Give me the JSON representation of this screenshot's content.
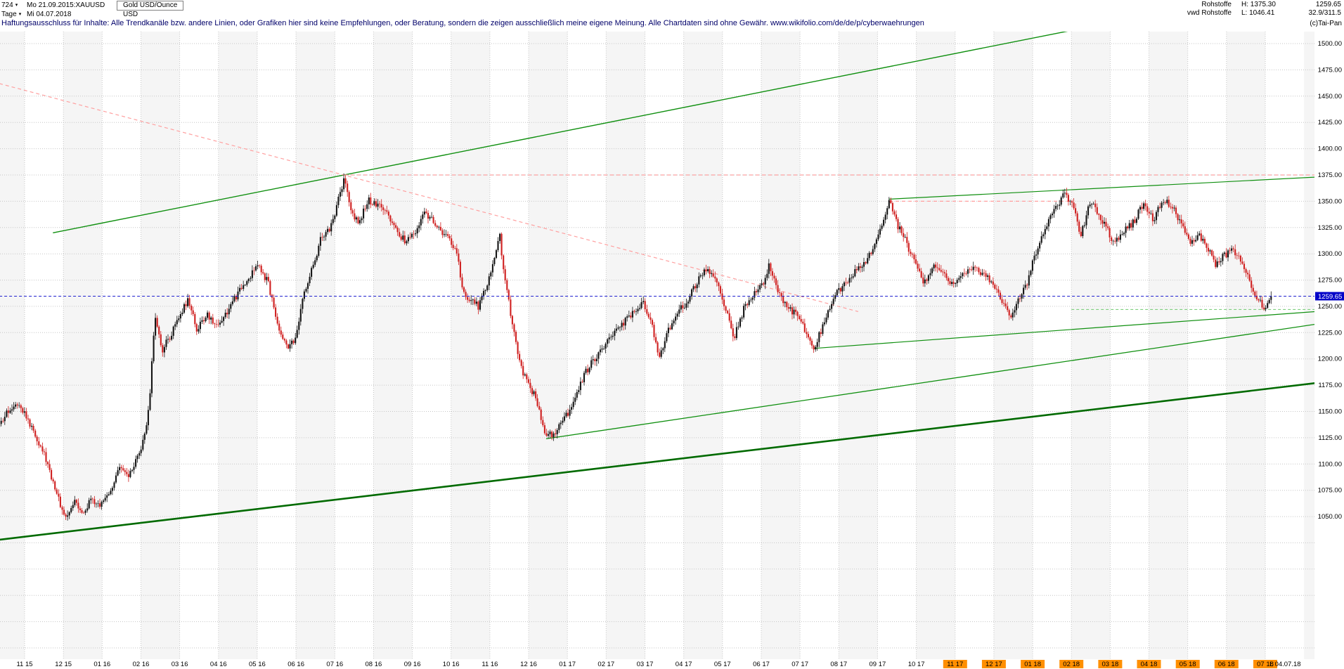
{
  "header": {
    "periods": "724",
    "range_start": "Mo 21.09.2015:XAUUSD",
    "instrument": "Gold USD/Ounce",
    "timeframe": "Tage",
    "range_end": "Mi 04.07.2018",
    "currency": "USD",
    "right": {
      "source1": "Rohstoffe",
      "high": "H: 1375.30",
      "price": "1259.65",
      "source2": "vwd Rohstoffe",
      "low": "L: 1046.41",
      "ratio": "32.9/311.5",
      "copyright": "(c)Tai-Pan"
    },
    "disclaimer": "Haftungsausschluss für Inhalte: Alle Trendkanäle bzw. andere Linien, oder Grafiken hier sind keine Empfehlungen, oder Beratung, sondern die zeigen ausschließlich meine eigene Meinung. Alle Chartdaten sind ohne Gewähr.  www.wikifolio.com/de/de/p/cyberwaehrungen"
  },
  "icons": {
    "dropdown": "▾"
  },
  "chart_data": {
    "type": "candlestick",
    "title": "Gold USD/Ounce",
    "symbol": "XAUUSD",
    "timeframe": "Tage",
    "period_shown": "21.09.2015 - 04.07.2018",
    "current_price": 1259.65,
    "high": 1375.3,
    "low": 1046.41,
    "y_axis": {
      "min": 1050,
      "max": 1500,
      "step": 25,
      "grid_min": 925
    },
    "x_axis": {
      "months": [
        {
          "label": "11 15",
          "hl": false
        },
        {
          "label": "12 15",
          "hl": false
        },
        {
          "label": "01 16",
          "hl": false
        },
        {
          "label": "02 16",
          "hl": false
        },
        {
          "label": "03 16",
          "hl": false
        },
        {
          "label": "04 16",
          "hl": false
        },
        {
          "label": "05 16",
          "hl": false
        },
        {
          "label": "06 16",
          "hl": false
        },
        {
          "label": "07 16",
          "hl": false
        },
        {
          "label": "08 16",
          "hl": false
        },
        {
          "label": "09 16",
          "hl": false
        },
        {
          "label": "10 16",
          "hl": false
        },
        {
          "label": "11 16",
          "hl": false
        },
        {
          "label": "12 16",
          "hl": false
        },
        {
          "label": "01 17",
          "hl": false
        },
        {
          "label": "02 17",
          "hl": false
        },
        {
          "label": "03 17",
          "hl": false
        },
        {
          "label": "04 17",
          "hl": false
        },
        {
          "label": "05 17",
          "hl": false
        },
        {
          "label": "06 17",
          "hl": false
        },
        {
          "label": "07 17",
          "hl": false
        },
        {
          "label": "08 17",
          "hl": false
        },
        {
          "label": "09 17",
          "hl": false
        },
        {
          "label": "10 17",
          "hl": false
        },
        {
          "label": "11 17",
          "hl": true
        },
        {
          "label": "12 17",
          "hl": true
        },
        {
          "label": "01 18",
          "hl": true
        },
        {
          "label": "02 18",
          "hl": true
        },
        {
          "label": "03 18",
          "hl": true
        },
        {
          "label": "04 18",
          "hl": true
        },
        {
          "label": "05 18",
          "hl": true
        },
        {
          "label": "06 18",
          "hl": true
        },
        {
          "label": "07 18",
          "hl": true
        }
      ],
      "last_label": "L 04.07.18"
    },
    "price_path_t_price": [
      [
        -0.65,
        1135
      ],
      [
        -0.4,
        1152
      ],
      [
        -0.15,
        1160
      ],
      [
        0.1,
        1140
      ],
      [
        0.45,
        1115
      ],
      [
        0.75,
        1082
      ],
      [
        0.95,
        1058
      ],
      [
        1.1,
        1048
      ],
      [
        1.3,
        1068
      ],
      [
        1.5,
        1052
      ],
      [
        1.7,
        1065
      ],
      [
        1.95,
        1060
      ],
      [
        2.2,
        1075
      ],
      [
        2.45,
        1095
      ],
      [
        2.7,
        1088
      ],
      [
        3,
        1112
      ],
      [
        3.2,
        1150
      ],
      [
        3.37,
        1242
      ],
      [
        3.55,
        1208
      ],
      [
        3.75,
        1222
      ],
      [
        3.95,
        1238
      ],
      [
        4.2,
        1256
      ],
      [
        4.45,
        1228
      ],
      [
        4.7,
        1242
      ],
      [
        4.95,
        1232
      ],
      [
        5.2,
        1244
      ],
      [
        5.5,
        1262
      ],
      [
        5.8,
        1278
      ],
      [
        6.05,
        1290
      ],
      [
        6.3,
        1270
      ],
      [
        6.55,
        1230
      ],
      [
        6.75,
        1212
      ],
      [
        7,
        1218
      ],
      [
        7.2,
        1262
      ],
      [
        7.45,
        1290
      ],
      [
        7.65,
        1315
      ],
      [
        7.85,
        1322
      ],
      [
        8.05,
        1345
      ],
      [
        8.25,
        1372
      ],
      [
        8.45,
        1338
      ],
      [
        8.65,
        1330
      ],
      [
        8.85,
        1352
      ],
      [
        9.1,
        1346
      ],
      [
        9.35,
        1338
      ],
      [
        9.6,
        1320
      ],
      [
        9.85,
        1312
      ],
      [
        10.1,
        1322
      ],
      [
        10.3,
        1342
      ],
      [
        10.55,
        1330
      ],
      [
        10.8,
        1318
      ],
      [
        11,
        1312
      ],
      [
        11.15,
        1300
      ],
      [
        11.3,
        1262
      ],
      [
        11.5,
        1255
      ],
      [
        11.7,
        1250
      ],
      [
        11.9,
        1268
      ],
      [
        12.1,
        1292
      ],
      [
        12.25,
        1318
      ],
      [
        12.4,
        1272
      ],
      [
        12.6,
        1230
      ],
      [
        12.8,
        1192
      ],
      [
        13,
        1175
      ],
      [
        13.2,
        1162
      ],
      [
        13.45,
        1126
      ],
      [
        13.65,
        1130
      ],
      [
        13.85,
        1138
      ],
      [
        14.1,
        1155
      ],
      [
        14.35,
        1178
      ],
      [
        14.6,
        1196
      ],
      [
        14.85,
        1208
      ],
      [
        15.1,
        1218
      ],
      [
        15.4,
        1232
      ],
      [
        15.7,
        1244
      ],
      [
        15.95,
        1253
      ],
      [
        16.15,
        1238
      ],
      [
        16.35,
        1200
      ],
      [
        16.55,
        1222
      ],
      [
        16.8,
        1244
      ],
      [
        17.05,
        1252
      ],
      [
        17.3,
        1270
      ],
      [
        17.55,
        1286
      ],
      [
        17.8,
        1275
      ],
      [
        18.05,
        1252
      ],
      [
        18.3,
        1220
      ],
      [
        18.55,
        1248
      ],
      [
        18.8,
        1262
      ],
      [
        19.05,
        1272
      ],
      [
        19.2,
        1290
      ],
      [
        19.45,
        1262
      ],
      [
        19.7,
        1248
      ],
      [
        19.95,
        1242
      ],
      [
        20.15,
        1225
      ],
      [
        20.35,
        1210
      ],
      [
        20.6,
        1232
      ],
      [
        20.85,
        1258
      ],
      [
        21.1,
        1270
      ],
      [
        21.4,
        1282
      ],
      [
        21.7,
        1292
      ],
      [
        21.95,
        1308
      ],
      [
        22.15,
        1330
      ],
      [
        22.3,
        1350
      ],
      [
        22.5,
        1328
      ],
      [
        22.75,
        1310
      ],
      [
        23,
        1288
      ],
      [
        23.2,
        1272
      ],
      [
        23.45,
        1288
      ],
      [
        23.7,
        1280
      ],
      [
        23.95,
        1272
      ],
      [
        24.2,
        1280
      ],
      [
        24.45,
        1288
      ],
      [
        24.7,
        1282
      ],
      [
        24.95,
        1272
      ],
      [
        25.15,
        1258
      ],
      [
        25.4,
        1240
      ],
      [
        25.6,
        1252
      ],
      [
        25.85,
        1272
      ],
      [
        26.05,
        1298
      ],
      [
        26.3,
        1322
      ],
      [
        26.55,
        1340
      ],
      [
        26.8,
        1358
      ],
      [
        27,
        1348
      ],
      [
        27.25,
        1318
      ],
      [
        27.5,
        1352
      ],
      [
        27.7,
        1338
      ],
      [
        27.9,
        1324
      ],
      [
        28.1,
        1310
      ],
      [
        28.35,
        1322
      ],
      [
        28.6,
        1330
      ],
      [
        28.85,
        1348
      ],
      [
        29.1,
        1332
      ],
      [
        29.35,
        1352
      ],
      [
        29.6,
        1344
      ],
      [
        29.85,
        1328
      ],
      [
        30.05,
        1310
      ],
      [
        30.25,
        1318
      ],
      [
        30.5,
        1308
      ],
      [
        30.7,
        1290
      ],
      [
        30.9,
        1298
      ],
      [
        31.15,
        1302
      ],
      [
        31.4,
        1292
      ],
      [
        31.6,
        1272
      ],
      [
        31.85,
        1254
      ],
      [
        32,
        1246
      ],
      [
        32.15,
        1259.65
      ]
    ],
    "trendlines": [
      {
        "name": "highs-channel-green",
        "t1": 0.73,
        "p1": 1320,
        "t2": 27.2,
        "p2": 1514,
        "color": "#0f8f0f",
        "w": 1.4
      },
      {
        "name": "downtrend-pink-dashed",
        "t1": -0.65,
        "p1": 1462,
        "t2": 21.5,
        "p2": 1245,
        "color": "#ffa0a0",
        "w": 1.2,
        "dash": "5 4"
      },
      {
        "name": "resistance-1375-pink-dashed",
        "t1": 8.25,
        "p1": 1375,
        "t2": 33.3,
        "p2": 1375,
        "color": "#ffa0a0",
        "w": 1.2,
        "dash": "5 4"
      },
      {
        "name": "tops-green-right",
        "t1": 22.3,
        "p1": 1352,
        "t2": 33.3,
        "p2": 1373,
        "color": "#0f8f0f",
        "w": 1.2
      },
      {
        "name": "double-top-pink-dashed",
        "t1": 22.3,
        "p1": 1350,
        "t2": 27,
        "p2": 1350,
        "color": "#ffa0a0",
        "w": 1.2,
        "dash": "5 4"
      },
      {
        "name": "support-from-dec16-green",
        "t1": 13.45,
        "p1": 1124,
        "t2": 33.3,
        "p2": 1233,
        "color": "#0f8f0f",
        "w": 1.3
      },
      {
        "name": "major-support-thick-green",
        "t1": -0.65,
        "p1": 1028,
        "t2": 33.3,
        "p2": 1177,
        "color": "#006a00",
        "w": 2.6
      },
      {
        "name": "minor-support-right-green",
        "t1": 20.35,
        "p1": 1210,
        "t2": 33.3,
        "p2": 1245,
        "color": "#0f8f0f",
        "w": 1.2
      },
      {
        "name": "level-green-dashed-right",
        "t1": 27,
        "p1": 1247,
        "t2": 33.3,
        "p2": 1247,
        "color": "#7fcf7f",
        "w": 1.1,
        "dash": "4 3"
      },
      {
        "name": "current-price-blue-dashed",
        "t1": -0.65,
        "p1": 1259.65,
        "t2": 33.3,
        "p2": 1259.65,
        "color": "#2020cf",
        "w": 1.1,
        "dash": "4 3",
        "top": true
      }
    ],
    "colors": {
      "up": "#141414",
      "down": "#cf1f1f",
      "grid": "#c6c6c6",
      "band": "#f5f5f5",
      "orange": "#ff8f00",
      "axis_text": "#000000",
      "current_badge_bg": "#0000c8",
      "current_badge_text": "#ffffff"
    }
  }
}
